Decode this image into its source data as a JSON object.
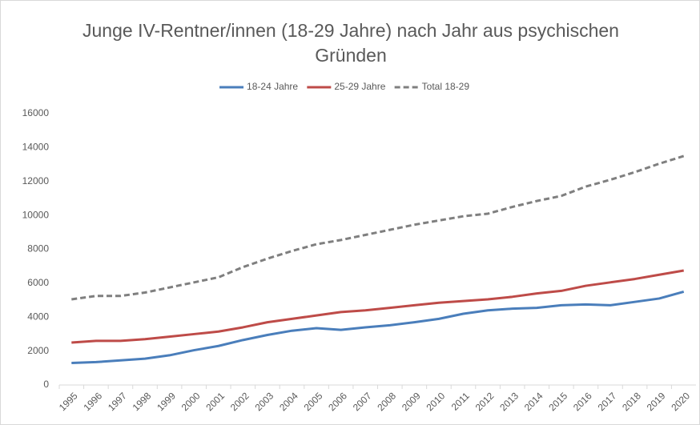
{
  "chart_data": {
    "type": "line",
    "title": "Junge IV-Rentner/innen (18-29 Jahre) nach Jahr aus psychischen Gründen",
    "categories": [
      "1995",
      "1996",
      "1997",
      "1998",
      "1999",
      "2000",
      "2001",
      "2002",
      "2003",
      "2004",
      "2005",
      "2006",
      "2007",
      "2008",
      "2009",
      "2010",
      "2011",
      "2012",
      "2013",
      "2014",
      "2015",
      "2016",
      "2017",
      "2018",
      "2019",
      "2020"
    ],
    "series": [
      {
        "name": "18-24 Jahre",
        "color": "#4a7ebb",
        "dashed": false,
        "values": [
          1300,
          1350,
          1450,
          1550,
          1750,
          2050,
          2300,
          2650,
          2950,
          3200,
          3350,
          3250,
          3400,
          3520,
          3700,
          3900,
          4200,
          4400,
          4500,
          4550,
          4700,
          4750,
          4700,
          4900,
          5100,
          5500
        ]
      },
      {
        "name": "25-29 Jahre",
        "color": "#be4b48",
        "dashed": false,
        "values": [
          2500,
          2600,
          2600,
          2700,
          2850,
          3000,
          3150,
          3400,
          3700,
          3900,
          4100,
          4300,
          4400,
          4550,
          4700,
          4850,
          4950,
          5050,
          5200,
          5400,
          5550,
          5850,
          6050,
          6250,
          6500,
          6750
        ]
      },
      {
        "name": "Total 18-29",
        "color": "#7f7f7f",
        "dashed": true,
        "values": [
          5050,
          5250,
          5250,
          5450,
          5750,
          6050,
          6350,
          6950,
          7450,
          7900,
          8300,
          8550,
          8850,
          9150,
          9450,
          9700,
          9950,
          10100,
          10500,
          10850,
          11150,
          11700,
          12100,
          12550,
          13050,
          13500
        ]
      }
    ],
    "ylim": [
      0,
      16000
    ],
    "yticks": [
      0,
      2000,
      4000,
      6000,
      8000,
      10000,
      12000,
      14000,
      16000
    ],
    "grid": false,
    "legend": "top"
  }
}
